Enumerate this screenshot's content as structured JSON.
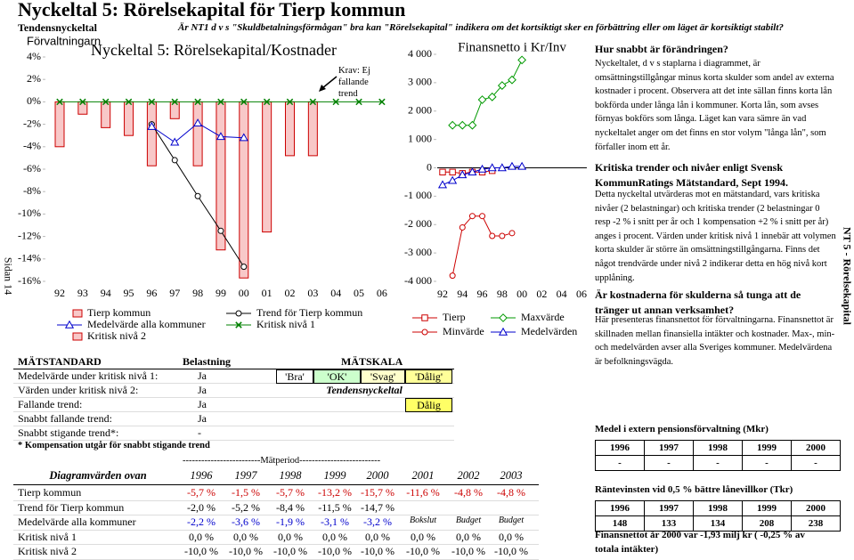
{
  "header": {
    "title": "Nyckeltal 5: Rörelsekapital för Tierp kommun",
    "subtitle": "Tendensnyckeltal",
    "question": "Är NT1 d v s \"Skuldbetalningsförmågan\" bra kan \"Rörelsekapital\" indikera om det kortsiktigt sker en förbättring eller om läget är kortsiktigt stabilt?"
  },
  "side_labels": {
    "left": "Sidan 14",
    "right": "NT 5 - Rörelsekapital"
  },
  "chart_data": [
    {
      "type": "bar",
      "title": "Nyckeltal 5: Rörelsekapital/Kostnader",
      "label": "Förvaltningarn",
      "annotation": "Krav: Ej fallande trend",
      "categories": [
        "92",
        "93",
        "94",
        "95",
        "96",
        "97",
        "98",
        "99",
        "00",
        "01",
        "02",
        "03",
        "04",
        "05",
        "06"
      ],
      "ylim": [
        -16,
        4
      ],
      "yticks": [
        {
          "value": 4,
          "label": "4%"
        },
        {
          "value": 2,
          "label": "2%"
        },
        {
          "value": 0,
          "label": "0%"
        },
        {
          "value": -2,
          "label": "-2%"
        },
        {
          "value": -4,
          "label": "-4%"
        },
        {
          "value": -6,
          "label": "-6%"
        },
        {
          "value": -8,
          "label": "-8%"
        },
        {
          "value": -10,
          "label": "-10%"
        },
        {
          "value": -12,
          "label": "-12%"
        },
        {
          "value": -14,
          "label": "-14%"
        },
        {
          "value": -16,
          "label": "-16%"
        }
      ],
      "series": [
        {
          "name": "Tierp kommun",
          "type": "bar",
          "color": "#f8c8c8",
          "values": [
            -4.0,
            -1.1,
            -2.3,
            -3.0,
            -5.7,
            -1.5,
            -5.7,
            -13.2,
            -15.7,
            -11.6,
            -4.8,
            -4.8,
            null,
            null,
            null
          ]
        },
        {
          "name": "Trend för Tierp kommun",
          "type": "line",
          "marker": "circle",
          "color": "#000000",
          "values": [
            null,
            null,
            null,
            null,
            -2.0,
            -5.2,
            -8.4,
            -11.5,
            -14.7,
            null,
            null,
            null,
            null,
            null,
            null
          ]
        },
        {
          "name": "Medelvärde alla kommuner",
          "type": "line",
          "marker": "triangle",
          "color": "#0000cc",
          "values": [
            null,
            null,
            null,
            null,
            -2.2,
            -3.6,
            -1.9,
            -3.1,
            -3.2,
            null,
            null,
            null,
            null,
            null,
            null
          ]
        },
        {
          "name": "Kritisk nivå 1",
          "type": "line",
          "marker": "x",
          "color": "#008000",
          "values": [
            0,
            0,
            0,
            0,
            0,
            0,
            0,
            0,
            0,
            0,
            0,
            0,
            0,
            0,
            0
          ]
        },
        {
          "name": "Kritisk nivå 2",
          "type": "bar",
          "color": "#f8c8c8"
        }
      ]
    },
    {
      "type": "line",
      "title": "Finansnetto i Kr/Inv",
      "categories": [
        "92",
        null,
        "94",
        null,
        "96",
        null,
        "98",
        null,
        "00",
        null,
        "02",
        null,
        "04",
        null,
        "06"
      ],
      "ylim": [
        -4000,
        4000
      ],
      "yticks": [
        {
          "value": 4000,
          "label": "4 000"
        },
        {
          "value": 3000,
          "label": "3 000"
        },
        {
          "value": 2000,
          "label": "2 000"
        },
        {
          "value": 1000,
          "label": "1 000"
        },
        0,
        {
          "value": -1000,
          "label": "-1 000"
        },
        {
          "value": -2000,
          "label": "-2 000"
        },
        {
          "value": -3000,
          "label": "-3 000"
        },
        {
          "value": -4000,
          "label": "-4 000"
        }
      ],
      "series": [
        {
          "name": "Tierp",
          "type": "line",
          "marker": "square",
          "color": "#cc0000",
          "values": [
            -150,
            -150,
            -200,
            -150,
            -150,
            -100,
            null,
            null,
            null,
            null,
            null,
            null,
            null,
            null,
            null
          ]
        },
        {
          "name": "Maxvärde",
          "type": "line",
          "marker": "diamond",
          "color": "#009900",
          "values": [
            null,
            1500,
            1500,
            1500,
            2400,
            2500,
            2900,
            3100,
            3800,
            null,
            null,
            null,
            null,
            null,
            null
          ]
        },
        {
          "name": "Minvärde",
          "type": "line",
          "marker": "circle",
          "color": "#cc0000",
          "values": [
            null,
            -3800,
            -2100,
            -1700,
            -1700,
            -2400,
            -2400,
            -2300,
            null,
            null,
            null,
            null,
            null,
            null,
            null
          ]
        },
        {
          "name": "Medelvärden",
          "type": "line",
          "marker": "triangle",
          "color": "#0000cc",
          "values": [
            -600,
            -450,
            -250,
            -150,
            -50,
            0,
            0,
            50,
            50,
            null,
            null,
            null,
            null,
            null,
            null
          ]
        }
      ]
    }
  ],
  "measurement": {
    "header": [
      "MÄTSTANDARD",
      "Belastning",
      "MÄTSKALA"
    ],
    "rows": [
      [
        "Medelvärde under kritisk nivå 1:",
        "Ja"
      ],
      [
        "Värden under kritisk nivå 2:",
        "Ja"
      ],
      [
        "Fallande trend:",
        "Ja"
      ],
      [
        "Snabbt fallande trend:",
        "Ja"
      ],
      [
        "Snabbt stigande trend*:",
        "-"
      ]
    ],
    "scale": [
      "'Bra'",
      "'OK'",
      "'Svag'",
      "'Dålig'"
    ],
    "scale_subtitle": "Tendensnyckeltal",
    "result": "Dålig",
    "footnote": "* Kompensation utgår för snabbt stigande trend"
  },
  "diagram_table": {
    "period_label": "-------------------------Mätperiod--------------------------",
    "header": [
      "Diagramvärden ovan",
      "1996",
      "1997",
      "1998",
      "1999",
      "2000",
      "2001",
      "2002",
      "2003"
    ],
    "rows": [
      [
        "Tierp kommun",
        "-5,7 %",
        "-1,5 %",
        "-5,7 %",
        "-13,2 %",
        "-15,7 %",
        "-11,6 %",
        "-4,8 %",
        "-4,8 %"
      ],
      [
        "Trend för Tierp kommun",
        "-2,0 %",
        "-5,2 %",
        "-8,4 %",
        "-11,5 %",
        "-14,7 %"
      ],
      [
        "Medelvärde alla kommuner",
        "-2,2 %",
        "-3,6 %",
        "-1,9 %",
        "-3,1 %",
        "-3,2 %",
        "Bokslut",
        "Budget",
        "Budget"
      ],
      [
        "Kritisk nivå 1",
        "0,0 %",
        "0,0 %",
        "0,0 %",
        "0,0 %",
        "0,0 %",
        "0,0 %",
        "0,0 %",
        "0,0 %"
      ],
      [
        "Kritisk nivå 2",
        "-10,0 %",
        "-10,0 %",
        "-10,0 %",
        "-10,0 %",
        "-10,0 %",
        "-10,0 %",
        "-10,0 %",
        "-10,0 %"
      ]
    ]
  },
  "right_panel": {
    "sections": [
      {
        "heading": "Hur snabbt är förändringen?",
        "text": "Nyckeltalet, d v s staplarna i diagrammet, är omsättningstillgångar minus korta skulder som andel av externa kostnader i procent. Observera att det inte sällan finns korta lån bokförda under långa lån i kommuner. Korta lån, som avses förnyas bokförs som långa. Läget kan vara sämre än vad nyckeltalet anger om det finns en stor volym \"långa lån\", som förfaller inom ett år."
      },
      {
        "heading": "Kritiska trender och nivåer enligt Svensk KommunRatings Mätstandard, Sept 1994.",
        "text": "Detta nyckeltal utvärderas mot en mätstandard, vars kritiska nivåer (2 belastningar) och kritiska trender (2 belastningar 0 resp -2 % i snitt per år och 1 kompensation +2 % i snitt per år) anges i procent. Värden under kritisk nivå 1 innebär att volymen korta skulder är större än omsättningstillgångarna. Finns det något trendvärde under nivå 2 indikerar detta en hög nivå kort upplåning."
      },
      {
        "heading": "Är kostnaderna för skulderna så tunga att de tränger ut annan verksamhet?",
        "text": "Här presenteras finansnettot för förvaltningarna. Finansnettot är skillnaden mellan finansiella intäkter och kostnader. Max-, min- och medelvärden avser alla Sveriges kommuner. Medelvärdena är befolkningsvägda."
      }
    ],
    "tables": [
      {
        "title": "Medel i extern pensionsförvaltning (Mkr)",
        "header": [
          "1996",
          "1997",
          "1998",
          "1999",
          "2000"
        ],
        "values": [
          "-",
          "-",
          "-",
          "-",
          "-"
        ]
      },
      {
        "title": "Räntevinsten vid 0,5 % bättre lånevillkor (Tkr)",
        "header": [
          "1996",
          "1997",
          "1998",
          "1999",
          "2000"
        ],
        "values": [
          "148",
          "133",
          "134",
          "208",
          "238"
        ]
      }
    ],
    "note": "Finansnettot år 2000 var -1,93 milj kr ( -0,25 % av totala intäkter)"
  }
}
